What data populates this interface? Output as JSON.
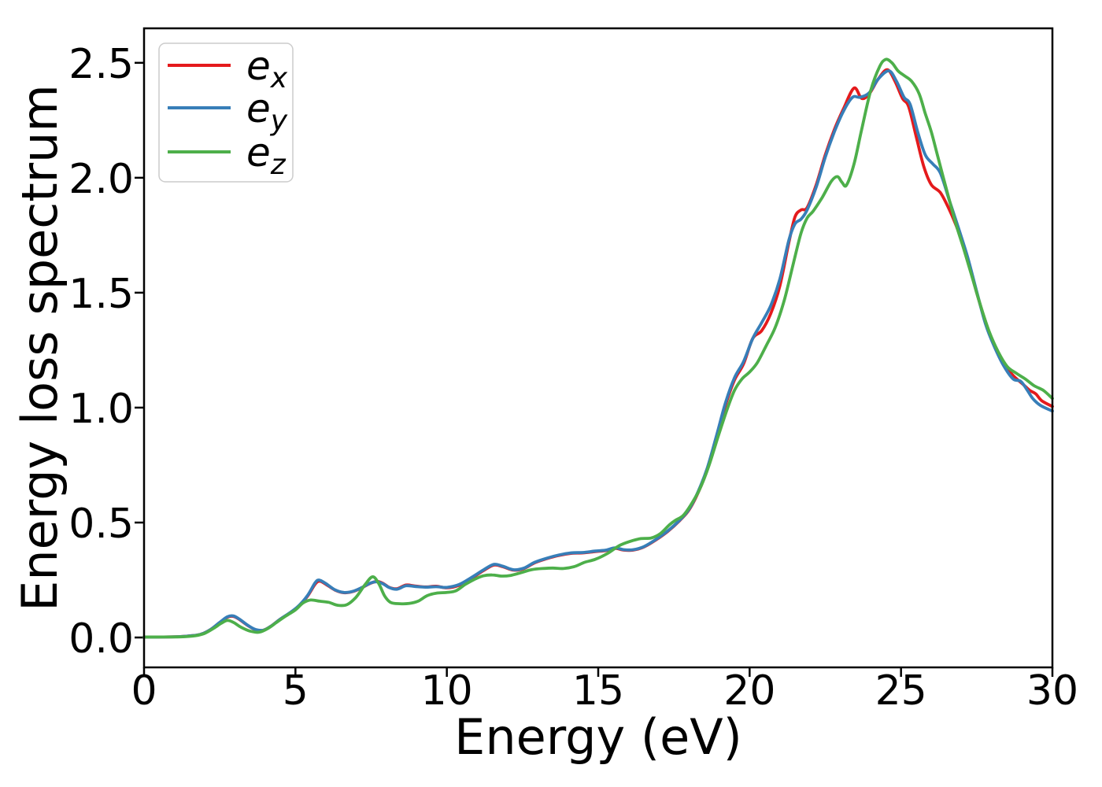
{
  "figure": {
    "background": "#ffffff",
    "border_color": "#000000"
  },
  "chart_data": {
    "type": "line",
    "title": "",
    "xlabel": "Energy (eV)",
    "ylabel": "Energy loss spectrum",
    "xlim": [
      0,
      30
    ],
    "ylim": [
      -0.13,
      2.65
    ],
    "xticks": [
      "0",
      "5",
      "10",
      "15",
      "20",
      "25",
      "30"
    ],
    "yticks": [
      "0.0",
      "0.5",
      "1.0",
      "1.5",
      "2.0",
      "2.5"
    ],
    "grid": false,
    "legend": {
      "position": "upper-left",
      "entries": [
        {
          "label": "e_x",
          "base": "e",
          "sub": "x",
          "color": "#e41a1c"
        },
        {
          "label": "e_y",
          "base": "e",
          "sub": "y",
          "color": "#377eb8"
        },
        {
          "label": "e_z",
          "base": "e",
          "sub": "z",
          "color": "#4daf4a"
        }
      ]
    },
    "series": [
      {
        "name": "e_x",
        "color": "#e41a1c",
        "linewidth": 3.8,
        "points": [
          [
            0,
            0.002
          ],
          [
            0.6,
            0.002
          ],
          [
            1.2,
            0.004
          ],
          [
            1.6,
            0.008
          ],
          [
            1.9,
            0.015
          ],
          [
            2.2,
            0.035
          ],
          [
            2.5,
            0.065
          ],
          [
            2.75,
            0.088
          ],
          [
            2.95,
            0.092
          ],
          [
            3.15,
            0.078
          ],
          [
            3.45,
            0.05
          ],
          [
            3.7,
            0.033
          ],
          [
            3.95,
            0.032
          ],
          [
            4.2,
            0.05
          ],
          [
            4.5,
            0.08
          ],
          [
            4.8,
            0.105
          ],
          [
            5.1,
            0.135
          ],
          [
            5.4,
            0.18
          ],
          [
            5.65,
            0.232
          ],
          [
            5.8,
            0.245
          ],
          [
            6.0,
            0.232
          ],
          [
            6.3,
            0.207
          ],
          [
            6.6,
            0.195
          ],
          [
            6.9,
            0.2
          ],
          [
            7.2,
            0.217
          ],
          [
            7.5,
            0.237
          ],
          [
            7.7,
            0.244
          ],
          [
            7.9,
            0.235
          ],
          [
            8.1,
            0.218
          ],
          [
            8.35,
            0.212
          ],
          [
            8.65,
            0.228
          ],
          [
            8.95,
            0.224
          ],
          [
            9.3,
            0.22
          ],
          [
            9.65,
            0.223
          ],
          [
            10.0,
            0.216
          ],
          [
            10.4,
            0.227
          ],
          [
            10.8,
            0.256
          ],
          [
            11.2,
            0.29
          ],
          [
            11.55,
            0.315
          ],
          [
            11.85,
            0.308
          ],
          [
            12.2,
            0.293
          ],
          [
            12.55,
            0.3
          ],
          [
            12.9,
            0.325
          ],
          [
            13.3,
            0.343
          ],
          [
            13.7,
            0.357
          ],
          [
            14.1,
            0.366
          ],
          [
            14.5,
            0.368
          ],
          [
            14.9,
            0.374
          ],
          [
            15.25,
            0.378
          ],
          [
            15.55,
            0.388
          ],
          [
            15.85,
            0.38
          ],
          [
            16.15,
            0.38
          ],
          [
            16.5,
            0.393
          ],
          [
            16.9,
            0.424
          ],
          [
            17.3,
            0.462
          ],
          [
            17.7,
            0.51
          ],
          [
            18.0,
            0.555
          ],
          [
            18.3,
            0.63
          ],
          [
            18.6,
            0.73
          ],
          [
            18.9,
            0.87
          ],
          [
            19.2,
            1.01
          ],
          [
            19.5,
            1.12
          ],
          [
            19.8,
            1.19
          ],
          [
            20.1,
            1.3
          ],
          [
            20.4,
            1.335
          ],
          [
            20.7,
            1.41
          ],
          [
            21.0,
            1.53
          ],
          [
            21.3,
            1.72
          ],
          [
            21.5,
            1.83
          ],
          [
            21.7,
            1.86
          ],
          [
            21.9,
            1.87
          ],
          [
            22.2,
            1.97
          ],
          [
            22.5,
            2.1
          ],
          [
            22.8,
            2.21
          ],
          [
            23.1,
            2.3
          ],
          [
            23.45,
            2.39
          ],
          [
            23.7,
            2.345
          ],
          [
            23.95,
            2.365
          ],
          [
            24.25,
            2.43
          ],
          [
            24.55,
            2.47
          ],
          [
            24.8,
            2.42
          ],
          [
            25.05,
            2.345
          ],
          [
            25.25,
            2.31
          ],
          [
            25.5,
            2.18
          ],
          [
            25.75,
            2.05
          ],
          [
            26.0,
            1.97
          ],
          [
            26.3,
            1.935
          ],
          [
            26.6,
            1.86
          ],
          [
            26.9,
            1.765
          ],
          [
            27.2,
            1.65
          ],
          [
            27.5,
            1.5
          ],
          [
            27.8,
            1.37
          ],
          [
            28.1,
            1.265
          ],
          [
            28.4,
            1.19
          ],
          [
            28.7,
            1.14
          ],
          [
            29.0,
            1.105
          ],
          [
            29.25,
            1.075
          ],
          [
            29.45,
            1.06
          ],
          [
            29.65,
            1.03
          ],
          [
            30,
            1.005
          ]
        ]
      },
      {
        "name": "e_y",
        "color": "#377eb8",
        "linewidth": 3.8,
        "points": [
          [
            0,
            0.002
          ],
          [
            0.6,
            0.002
          ],
          [
            1.2,
            0.004
          ],
          [
            1.6,
            0.008
          ],
          [
            1.9,
            0.015
          ],
          [
            2.2,
            0.035
          ],
          [
            2.5,
            0.066
          ],
          [
            2.75,
            0.09
          ],
          [
            2.95,
            0.094
          ],
          [
            3.15,
            0.08
          ],
          [
            3.45,
            0.051
          ],
          [
            3.7,
            0.034
          ],
          [
            3.95,
            0.032
          ],
          [
            4.2,
            0.05
          ],
          [
            4.5,
            0.08
          ],
          [
            4.8,
            0.106
          ],
          [
            5.1,
            0.137
          ],
          [
            5.4,
            0.183
          ],
          [
            5.65,
            0.238
          ],
          [
            5.78,
            0.25
          ],
          [
            6.0,
            0.235
          ],
          [
            6.3,
            0.208
          ],
          [
            6.6,
            0.196
          ],
          [
            6.9,
            0.201
          ],
          [
            7.2,
            0.218
          ],
          [
            7.5,
            0.238
          ],
          [
            7.7,
            0.242
          ],
          [
            7.9,
            0.233
          ],
          [
            8.1,
            0.217
          ],
          [
            8.35,
            0.21
          ],
          [
            8.65,
            0.225
          ],
          [
            8.95,
            0.222
          ],
          [
            9.3,
            0.219
          ],
          [
            9.65,
            0.221
          ],
          [
            10.0,
            0.218
          ],
          [
            10.4,
            0.23
          ],
          [
            10.8,
            0.26
          ],
          [
            11.2,
            0.293
          ],
          [
            11.55,
            0.318
          ],
          [
            11.85,
            0.31
          ],
          [
            12.2,
            0.295
          ],
          [
            12.55,
            0.302
          ],
          [
            12.9,
            0.327
          ],
          [
            13.3,
            0.345
          ],
          [
            13.7,
            0.359
          ],
          [
            14.1,
            0.368
          ],
          [
            14.5,
            0.37
          ],
          [
            14.9,
            0.376
          ],
          [
            15.25,
            0.38
          ],
          [
            15.55,
            0.39
          ],
          [
            15.85,
            0.382
          ],
          [
            16.15,
            0.382
          ],
          [
            16.5,
            0.395
          ],
          [
            16.9,
            0.426
          ],
          [
            17.3,
            0.464
          ],
          [
            17.7,
            0.512
          ],
          [
            18.0,
            0.558
          ],
          [
            18.3,
            0.635
          ],
          [
            18.6,
            0.737
          ],
          [
            18.9,
            0.875
          ],
          [
            19.2,
            1.02
          ],
          [
            19.5,
            1.13
          ],
          [
            19.8,
            1.2
          ],
          [
            20.1,
            1.3
          ],
          [
            20.4,
            1.37
          ],
          [
            20.7,
            1.445
          ],
          [
            21.0,
            1.56
          ],
          [
            21.3,
            1.73
          ],
          [
            21.5,
            1.8
          ],
          [
            21.7,
            1.82
          ],
          [
            21.9,
            1.86
          ],
          [
            22.2,
            1.96
          ],
          [
            22.5,
            2.09
          ],
          [
            22.8,
            2.2
          ],
          [
            23.1,
            2.29
          ],
          [
            23.4,
            2.35
          ],
          [
            23.65,
            2.35
          ],
          [
            23.95,
            2.37
          ],
          [
            24.25,
            2.43
          ],
          [
            24.6,
            2.465
          ],
          [
            24.85,
            2.42
          ],
          [
            25.1,
            2.35
          ],
          [
            25.3,
            2.32
          ],
          [
            25.55,
            2.2
          ],
          [
            25.8,
            2.1
          ],
          [
            26.05,
            2.06
          ],
          [
            26.3,
            2.02
          ],
          [
            26.6,
            1.9
          ],
          [
            26.9,
            1.78
          ],
          [
            27.2,
            1.655
          ],
          [
            27.5,
            1.505
          ],
          [
            27.8,
            1.36
          ],
          [
            28.1,
            1.26
          ],
          [
            28.4,
            1.18
          ],
          [
            28.7,
            1.125
          ],
          [
            28.95,
            1.115
          ],
          [
            29.15,
            1.08
          ],
          [
            29.35,
            1.04
          ],
          [
            29.6,
            1.01
          ],
          [
            30,
            0.985
          ]
        ]
      },
      {
        "name": "e_z",
        "color": "#4daf4a",
        "linewidth": 3.8,
        "points": [
          [
            0,
            0.002
          ],
          [
            0.6,
            0.002
          ],
          [
            1.2,
            0.003
          ],
          [
            1.7,
            0.008
          ],
          [
            2.0,
            0.018
          ],
          [
            2.3,
            0.04
          ],
          [
            2.55,
            0.062
          ],
          [
            2.75,
            0.074
          ],
          [
            2.95,
            0.066
          ],
          [
            3.2,
            0.045
          ],
          [
            3.5,
            0.028
          ],
          [
            3.8,
            0.023
          ],
          [
            4.1,
            0.04
          ],
          [
            4.4,
            0.068
          ],
          [
            4.7,
            0.095
          ],
          [
            5.0,
            0.12
          ],
          [
            5.25,
            0.15
          ],
          [
            5.5,
            0.163
          ],
          [
            5.8,
            0.158
          ],
          [
            6.1,
            0.153
          ],
          [
            6.4,
            0.14
          ],
          [
            6.7,
            0.143
          ],
          [
            7.0,
            0.175
          ],
          [
            7.3,
            0.23
          ],
          [
            7.55,
            0.264
          ],
          [
            7.75,
            0.235
          ],
          [
            7.95,
            0.18
          ],
          [
            8.15,
            0.152
          ],
          [
            8.45,
            0.147
          ],
          [
            8.75,
            0.148
          ],
          [
            9.05,
            0.158
          ],
          [
            9.35,
            0.182
          ],
          [
            9.65,
            0.193
          ],
          [
            10.0,
            0.196
          ],
          [
            10.3,
            0.203
          ],
          [
            10.6,
            0.23
          ],
          [
            10.9,
            0.252
          ],
          [
            11.2,
            0.268
          ],
          [
            11.5,
            0.272
          ],
          [
            11.8,
            0.267
          ],
          [
            12.1,
            0.27
          ],
          [
            12.45,
            0.282
          ],
          [
            12.8,
            0.295
          ],
          [
            13.15,
            0.3
          ],
          [
            13.5,
            0.302
          ],
          [
            13.85,
            0.3
          ],
          [
            14.2,
            0.308
          ],
          [
            14.55,
            0.327
          ],
          [
            14.9,
            0.34
          ],
          [
            15.3,
            0.365
          ],
          [
            15.7,
            0.4
          ],
          [
            16.05,
            0.418
          ],
          [
            16.4,
            0.43
          ],
          [
            16.75,
            0.433
          ],
          [
            17.05,
            0.452
          ],
          [
            17.35,
            0.49
          ],
          [
            17.55,
            0.51
          ],
          [
            17.8,
            0.53
          ],
          [
            18.05,
            0.575
          ],
          [
            18.35,
            0.645
          ],
          [
            18.65,
            0.745
          ],
          [
            18.95,
            0.87
          ],
          [
            19.25,
            0.99
          ],
          [
            19.5,
            1.075
          ],
          [
            19.75,
            1.125
          ],
          [
            20.0,
            1.155
          ],
          [
            20.25,
            1.195
          ],
          [
            20.55,
            1.27
          ],
          [
            20.85,
            1.35
          ],
          [
            21.15,
            1.47
          ],
          [
            21.45,
            1.63
          ],
          [
            21.7,
            1.76
          ],
          [
            21.9,
            1.825
          ],
          [
            22.1,
            1.855
          ],
          [
            22.4,
            1.915
          ],
          [
            22.7,
            1.985
          ],
          [
            22.9,
            2.005
          ],
          [
            23.05,
            1.98
          ],
          [
            23.2,
            1.968
          ],
          [
            23.45,
            2.06
          ],
          [
            23.7,
            2.21
          ],
          [
            24.0,
            2.38
          ],
          [
            24.3,
            2.485
          ],
          [
            24.5,
            2.515
          ],
          [
            24.7,
            2.5
          ],
          [
            24.9,
            2.465
          ],
          [
            25.1,
            2.445
          ],
          [
            25.35,
            2.42
          ],
          [
            25.6,
            2.365
          ],
          [
            25.8,
            2.28
          ],
          [
            26.0,
            2.2
          ],
          [
            26.2,
            2.1
          ],
          [
            26.5,
            1.95
          ],
          [
            26.8,
            1.805
          ],
          [
            27.05,
            1.7
          ],
          [
            27.3,
            1.59
          ],
          [
            27.6,
            1.455
          ],
          [
            27.9,
            1.335
          ],
          [
            28.2,
            1.245
          ],
          [
            28.5,
            1.18
          ],
          [
            28.8,
            1.15
          ],
          [
            29.1,
            1.125
          ],
          [
            29.4,
            1.095
          ],
          [
            29.7,
            1.075
          ],
          [
            30,
            1.04
          ]
        ]
      }
    ]
  }
}
